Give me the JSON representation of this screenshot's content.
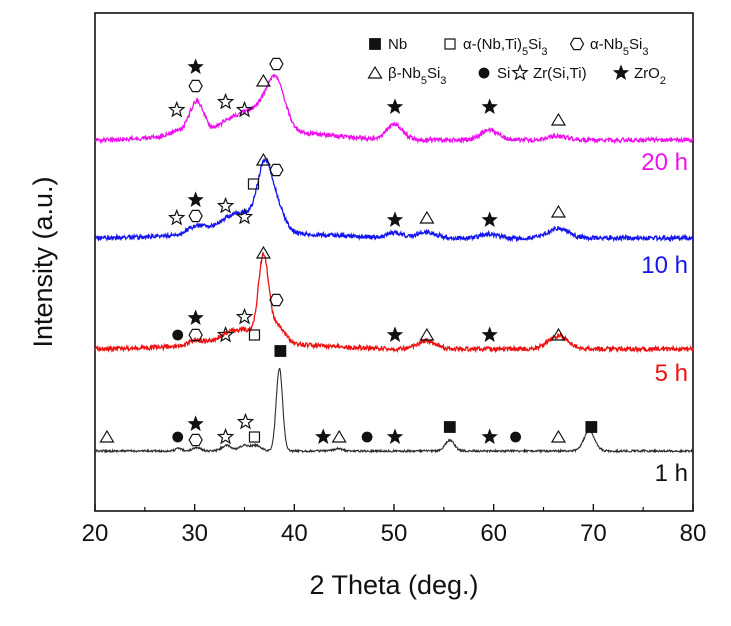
{
  "chart_data": {
    "type": "line",
    "title": "",
    "xlabel": "2 Theta (deg.)",
    "ylabel": "Intensity (a.u.)",
    "xlim": [
      20,
      80
    ],
    "x_ticks": [
      20,
      30,
      40,
      50,
      60,
      70,
      80
    ],
    "x_tick_labels": [
      "20",
      "30",
      "40",
      "50",
      "60",
      "70",
      "80"
    ],
    "grid": false,
    "legend_position": "top-right",
    "legend": [
      {
        "symbol": "filled-square",
        "name_main": "Nb",
        "name_sub": "",
        "name_tail": ""
      },
      {
        "symbol": "open-square",
        "name_main": "α-(Nb,Ti)",
        "name_sub": "5",
        "name_tail": "Si",
        "name_sub2": "3"
      },
      {
        "symbol": "open-hexagon",
        "name_main": "α-Nb",
        "name_sub": "5",
        "name_tail": "Si",
        "name_sub2": "3"
      },
      {
        "symbol": "open-triangle",
        "name_main": "β-Nb",
        "name_sub": "5",
        "name_tail": "Si",
        "name_sub2": "3"
      },
      {
        "symbol": "filled-circle",
        "name_main": "Si",
        "name_sub": "",
        "name_tail": ""
      },
      {
        "symbol": "open-star",
        "name_main": "Zr(Si,Ti)",
        "name_sub": "",
        "name_tail": ""
      },
      {
        "symbol": "filled-star",
        "name_main": "ZrO",
        "name_sub": "2",
        "name_tail": ""
      }
    ],
    "series": [
      {
        "name": "1 h",
        "color": "#2b2b2b",
        "baseline": 0,
        "peaks": [
          {
            "x": 28.4,
            "h": 3,
            "w": 0.3
          },
          {
            "x": 30.2,
            "h": 4,
            "w": 0.4
          },
          {
            "x": 33.2,
            "h": 6,
            "w": 0.5
          },
          {
            "x": 35.0,
            "h": 6,
            "w": 0.5
          },
          {
            "x": 36.2,
            "h": 6,
            "w": 0.5
          },
          {
            "x": 38.5,
            "h": 92,
            "w": 0.32
          },
          {
            "x": 44.4,
            "h": 3,
            "w": 0.4
          },
          {
            "x": 55.6,
            "h": 12,
            "w": 0.45
          },
          {
            "x": 69.6,
            "h": 22,
            "w": 0.55
          }
        ],
        "markers": [
          {
            "x": 21.2,
            "symbol": "open-triangle",
            "level": 0
          },
          {
            "x": 28.3,
            "symbol": "filled-circle",
            "level": 0
          },
          {
            "x": 30.1,
            "symbol": "open-hexagon",
            "level": 0
          },
          {
            "x": 30.1,
            "symbol": "filled-star",
            "level": 1
          },
          {
            "x": 33.1,
            "symbol": "open-star",
            "level": 0
          },
          {
            "x": 35.1,
            "symbol": "open-star",
            "level": 1
          },
          {
            "x": 36.0,
            "symbol": "open-square",
            "level": 0
          },
          {
            "x": 38.6,
            "symbol": "filled-square",
            "level": 0
          },
          {
            "x": 42.9,
            "symbol": "filled-star",
            "level": 0
          },
          {
            "x": 44.5,
            "symbol": "open-triangle",
            "level": 0
          },
          {
            "x": 47.3,
            "symbol": "filled-circle",
            "level": 0
          },
          {
            "x": 50.1,
            "symbol": "filled-star",
            "level": 0
          },
          {
            "x": 55.6,
            "symbol": "filled-square",
            "level": 0
          },
          {
            "x": 59.6,
            "symbol": "filled-star",
            "level": 0
          },
          {
            "x": 62.2,
            "symbol": "filled-circle",
            "level": 0
          },
          {
            "x": 66.5,
            "symbol": "open-triangle",
            "level": 0
          },
          {
            "x": 69.8,
            "symbol": "filled-square",
            "level": 0
          }
        ]
      },
      {
        "name": "5 h",
        "color": "#ee1111",
        "baseline": 0,
        "peaks": [
          {
            "x": 30.2,
            "h": 5,
            "w": 0.8
          },
          {
            "x": 33.2,
            "h": 8,
            "w": 1.0
          },
          {
            "x": 35.2,
            "h": 12,
            "w": 1.2
          },
          {
            "x": 36.9,
            "h": 80,
            "w": 0.5
          },
          {
            "x": 38.2,
            "h": 18,
            "w": 0.8
          },
          {
            "x": 53.3,
            "h": 8,
            "w": 0.9
          },
          {
            "x": 66.5,
            "h": 13,
            "w": 1.0
          }
        ],
        "markers": [
          {
            "x": 28.3,
            "symbol": "filled-circle",
            "level": 0
          },
          {
            "x": 30.1,
            "symbol": "open-hexagon",
            "level": 0
          },
          {
            "x": 30.1,
            "symbol": "filled-star",
            "level": 1
          },
          {
            "x": 33.1,
            "symbol": "open-star",
            "level": 0
          },
          {
            "x": 35.0,
            "symbol": "open-star",
            "level": 1
          },
          {
            "x": 36.0,
            "symbol": "open-square",
            "level": 0
          },
          {
            "x": 36.9,
            "symbol": "open-triangle",
            "level": 0
          },
          {
            "x": 38.2,
            "symbol": "open-hexagon",
            "level": 0
          },
          {
            "x": 50.1,
            "symbol": "filled-star",
            "level": 0
          },
          {
            "x": 53.3,
            "symbol": "open-triangle",
            "level": 0
          },
          {
            "x": 59.6,
            "symbol": "filled-star",
            "level": 0
          },
          {
            "x": 66.5,
            "symbol": "open-triangle",
            "level": 0
          }
        ]
      },
      {
        "name": "10 h",
        "color": "#1515ee",
        "baseline": 0,
        "peaks": [
          {
            "x": 30.2,
            "h": 8,
            "w": 1.0
          },
          {
            "x": 33.2,
            "h": 10,
            "w": 1.2
          },
          {
            "x": 35.2,
            "h": 16,
            "w": 1.3
          },
          {
            "x": 37.0,
            "h": 58,
            "w": 0.7
          },
          {
            "x": 38.2,
            "h": 25,
            "w": 0.8
          },
          {
            "x": 50.1,
            "h": 5,
            "w": 0.8
          },
          {
            "x": 53.3,
            "h": 6,
            "w": 0.9
          },
          {
            "x": 59.6,
            "h": 4,
            "w": 0.8
          },
          {
            "x": 66.5,
            "h": 10,
            "w": 1.0
          }
        ],
        "markers": [
          {
            "x": 28.2,
            "symbol": "open-star",
            "level": 0
          },
          {
            "x": 30.1,
            "symbol": "open-hexagon",
            "level": 0
          },
          {
            "x": 30.1,
            "symbol": "filled-star",
            "level": 1
          },
          {
            "x": 33.1,
            "symbol": "open-star",
            "level": 0
          },
          {
            "x": 35.0,
            "symbol": "open-star",
            "level": 0
          },
          {
            "x": 35.9,
            "symbol": "open-square",
            "level": 0
          },
          {
            "x": 36.9,
            "symbol": "open-triangle",
            "level": 0
          },
          {
            "x": 38.2,
            "symbol": "open-hexagon",
            "level": 0
          },
          {
            "x": 50.1,
            "symbol": "filled-star",
            "level": 0
          },
          {
            "x": 53.3,
            "symbol": "open-triangle",
            "level": 0
          },
          {
            "x": 59.6,
            "symbol": "filled-star",
            "level": 0
          },
          {
            "x": 66.5,
            "symbol": "open-triangle",
            "level": 0
          }
        ]
      },
      {
        "name": "20 h",
        "color": "#ee11ee",
        "baseline": 0,
        "peaks": [
          {
            "x": 28.2,
            "h": 5,
            "w": 0.8
          },
          {
            "x": 30.2,
            "h": 32,
            "w": 0.7
          },
          {
            "x": 33.2,
            "h": 8,
            "w": 1.0
          },
          {
            "x": 35.2,
            "h": 16,
            "w": 1.1
          },
          {
            "x": 36.9,
            "h": 14,
            "w": 0.9
          },
          {
            "x": 38.2,
            "h": 48,
            "w": 0.9
          },
          {
            "x": 50.1,
            "h": 15,
            "w": 0.8
          },
          {
            "x": 59.6,
            "h": 10,
            "w": 0.9
          },
          {
            "x": 66.5,
            "h": 4,
            "w": 0.9
          }
        ],
        "markers": [
          {
            "x": 28.2,
            "symbol": "open-star",
            "level": 0
          },
          {
            "x": 30.1,
            "symbol": "open-hexagon",
            "level": 0
          },
          {
            "x": 30.1,
            "symbol": "filled-star",
            "level": 1
          },
          {
            "x": 33.1,
            "symbol": "open-star",
            "level": 0
          },
          {
            "x": 35.0,
            "symbol": "open-star",
            "level": 0
          },
          {
            "x": 36.9,
            "symbol": "open-triangle",
            "level": 0
          },
          {
            "x": 38.2,
            "symbol": "open-hexagon",
            "level": 0
          },
          {
            "x": 50.1,
            "symbol": "filled-star",
            "level": 0
          },
          {
            "x": 59.6,
            "symbol": "filled-star",
            "level": 0
          },
          {
            "x": 66.5,
            "symbol": "open-triangle",
            "level": 0
          }
        ]
      }
    ]
  }
}
